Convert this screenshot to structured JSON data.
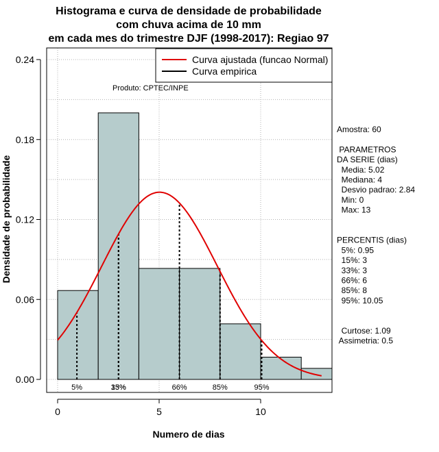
{
  "chart_data": {
    "type": "bar",
    "title_lines": [
      "Histograma e curva de densidade de probabilidade",
      "com chuva acima de 10 mm",
      "em cada mes do trimestre DJF (1998-2017): Regiao 97"
    ],
    "xlabel": "Numero de dias",
    "ylabel": "Densidade de probabilidade",
    "xlim": [
      -0.5,
      13.5
    ],
    "ylim": [
      0,
      0.24
    ],
    "x_ticks": [
      0,
      5,
      10
    ],
    "y_ticks": [
      0.0,
      0.06,
      0.12,
      0.18,
      0.24
    ],
    "y_tick_labels": [
      "0.00",
      "0.06",
      "0.12",
      "0.18",
      "0.24"
    ],
    "bins": [
      {
        "start": 0,
        "end": 2,
        "density": 0.0667
      },
      {
        "start": 2,
        "end": 4,
        "density": 0.2
      },
      {
        "start": 4,
        "end": 6,
        "density": 0.0833
      },
      {
        "start": 6,
        "end": 8,
        "density": 0.0833
      },
      {
        "start": 8,
        "end": 10,
        "density": 0.0417
      },
      {
        "start": 10,
        "end": 12,
        "density": 0.0167
      },
      {
        "start": 12,
        "end": 14,
        "density": 0.0083
      }
    ],
    "bar_color": "#b6cccc",
    "normal_curve": {
      "mean": 5.02,
      "sd": 2.84,
      "x_range": [
        0,
        13
      ],
      "color": "#e00000"
    },
    "percentile_lines": [
      {
        "label": "5%",
        "x": 0.95
      },
      {
        "label": "15%",
        "x": 3
      },
      {
        "label": "33%",
        "x": 3
      },
      {
        "label": "66%",
        "x": 6
      },
      {
        "label": "85%",
        "x": 8
      },
      {
        "label": "95%",
        "x": 10.05
      }
    ],
    "legend": [
      {
        "label": "Curva ajustada (funcao Normal)",
        "color": "#e00000"
      },
      {
        "label": "Curva empirica",
        "color": "#000000"
      }
    ],
    "annotation": "Produto: CPTEC/INPE",
    "grid": true
  },
  "side_panel": {
    "lines": [
      "Amostra: 60",
      "",
      " PARAMETROS",
      "DA SERIE (dias)",
      "  Media: 5.02",
      "  Mediana: 4",
      "  Desvio padrao: 2.84",
      "  Min: 0",
      "  Max: 13",
      "",
      "",
      "PERCENTIS (dias)",
      "  5%: 0.95",
      "  15%: 3",
      "  33%: 3",
      "  66%: 6",
      "  85%: 8",
      "  95%: 10.05",
      "",
      "",
      "  Curtose: 1.09",
      " Assimetria: 0.5"
    ]
  }
}
